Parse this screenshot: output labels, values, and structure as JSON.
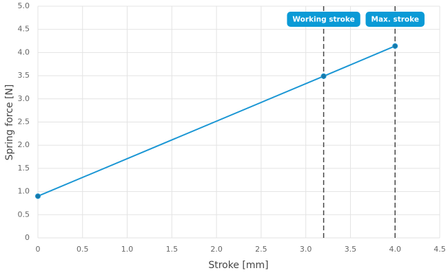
{
  "chart_data": {
    "type": "line",
    "x_label": "Stroke [mm]",
    "y_label": "Spring force [N]",
    "x": [
      0,
      3.2,
      4.0
    ],
    "series": [
      {
        "name": "Spring force",
        "color": "#1a96d4",
        "values": [
          0.9,
          3.49,
          4.14
        ]
      }
    ],
    "xlim": [
      0,
      4.5
    ],
    "xticks": [
      0,
      0.5,
      {
        "value": 1,
        "label": "1.0"
      },
      1.5,
      {
        "value": 2,
        "label": "2.0"
      },
      2.5,
      {
        "value": 3,
        "label": "3.0"
      },
      3.5,
      {
        "value": 4,
        "label": "4.0"
      },
      4.5
    ],
    "ylim": [
      0,
      5
    ],
    "yticks": [
      0,
      0.5,
      {
        "value": 1,
        "label": "1.0"
      },
      1.5,
      {
        "value": 2,
        "label": "2.0"
      },
      2.5,
      {
        "value": 3,
        "label": "3.0"
      },
      3.5,
      {
        "value": 4,
        "label": "4.0"
      },
      4.5,
      {
        "value": 5,
        "label": "5.0"
      }
    ],
    "grid": true,
    "annotations": [
      {
        "x": 3.2,
        "label": "Working stroke"
      },
      {
        "x": 4.0,
        "label": "Max. stroke"
      }
    ],
    "annotation_color": "#0a9ad6"
  }
}
